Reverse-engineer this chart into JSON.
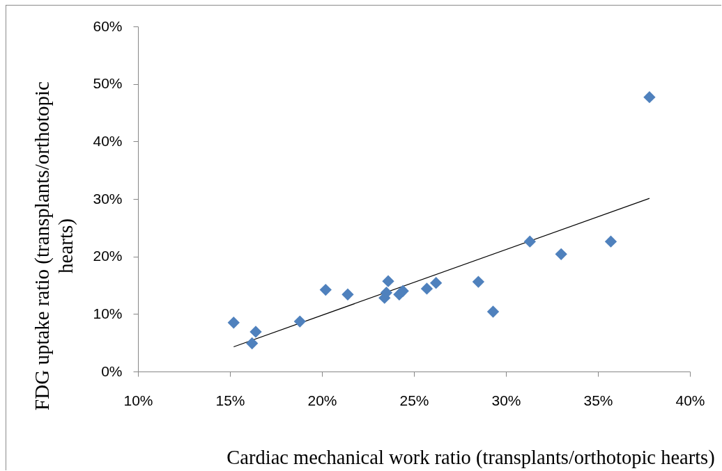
{
  "chart_data": {
    "type": "scatter",
    "xlabel": "Cardiac mechanical work ratio (transplants/orthotopic hearts)",
    "ylabel": "FDG uptake ratio (transplants/orthotopic hearts)",
    "marker": "diamond",
    "xlim": [
      10,
      40
    ],
    "xticks": [
      {
        "value": 10,
        "label": "10%"
      },
      {
        "value": 15,
        "label": "15%"
      },
      {
        "value": 20,
        "label": "20%"
      },
      {
        "value": 25,
        "label": "25%"
      },
      {
        "value": 30,
        "label": "30%"
      },
      {
        "value": 35,
        "label": "35%"
      },
      {
        "value": 40,
        "label": "40%"
      }
    ],
    "ylim": [
      0,
      60
    ],
    "yticks": [
      {
        "value": 0,
        "label": "0%"
      },
      {
        "value": 10,
        "label": "10%"
      },
      {
        "value": 20,
        "label": "20%"
      },
      {
        "value": 30,
        "label": "30%"
      },
      {
        "value": 40,
        "label": "40%"
      },
      {
        "value": 50,
        "label": "50%"
      },
      {
        "value": 60,
        "label": "60%"
      }
    ],
    "series": [
      {
        "color": "#4f81bd",
        "x": [
          15.2,
          16.2,
          16.4,
          18.8,
          20.2,
          21.4,
          23.4,
          23.5,
          23.6,
          24.2,
          24.4,
          25.7,
          26.2,
          28.5,
          29.3,
          31.3,
          33.0,
          35.7,
          37.8
        ],
        "values": [
          8.5,
          4.9,
          6.9,
          8.7,
          14.2,
          13.4,
          12.8,
          13.7,
          15.7,
          13.4,
          14.0,
          14.4,
          15.4,
          15.6,
          10.4,
          22.6,
          20.4,
          22.6,
          47.7
        ]
      },
      {
        "type": "line",
        "color": "#000000",
        "marker": "none",
        "x": [
          15.2,
          37.8
        ],
        "values": [
          4.3,
          30.1
        ]
      }
    ]
  }
}
